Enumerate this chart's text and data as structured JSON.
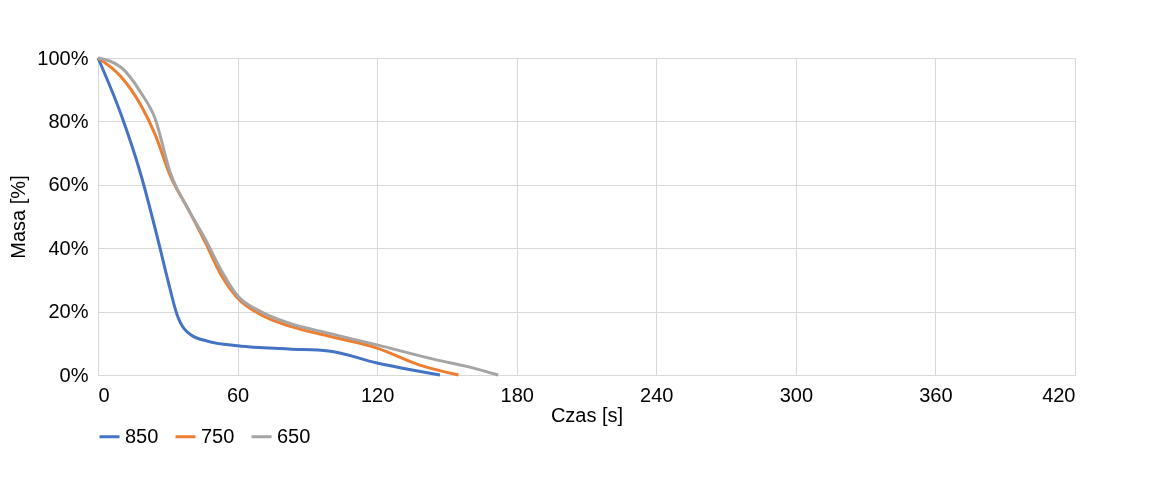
{
  "chart_data": {
    "type": "line",
    "xlabel": "Czas [s]",
    "ylabel": "Masa [%]",
    "xlim": [
      0,
      420
    ],
    "xticks": [
      0,
      60,
      120,
      180,
      240,
      300,
      360,
      420
    ],
    "ylim": [
      0,
      100
    ],
    "yticks": [
      {
        "value": 0,
        "label": "0%"
      },
      {
        "value": 20,
        "label": "20%"
      },
      {
        "value": 40,
        "label": "40%"
      },
      {
        "value": 60,
        "label": "60%"
      },
      {
        "value": 80,
        "label": "80%"
      },
      {
        "value": 100,
        "label": "100%"
      }
    ],
    "grid": true,
    "legend": "bottom",
    "marker": "none",
    "line_style": "solid",
    "series": [
      {
        "name": "850",
        "color": "#4472c4",
        "x": [
          0,
          10,
          18.5,
          26,
          30,
          34,
          40,
          47,
          60,
          82,
          99,
          120,
          135,
          147
        ],
        "values": [
          100,
          82,
          63,
          42,
          30,
          19,
          12.6,
          10.7,
          9.2,
          8.2,
          7.6,
          3.8,
          1.6,
          0
        ]
      },
      {
        "name": "750",
        "color": "#ed7d31",
        "x": [
          0,
          10,
          18.5,
          24.5,
          31,
          39,
          46,
          53,
          60,
          70,
          82,
          99,
          120,
          138,
          155
        ],
        "values": [
          100,
          94,
          85,
          76,
          63,
          52,
          42,
          31.5,
          24.3,
          19,
          15.5,
          12.3,
          8.5,
          3.2,
          0
        ]
      },
      {
        "name": "650",
        "color": "#a5a5a5",
        "x": [
          0,
          10,
          18.5,
          24.5,
          31,
          39,
          46,
          53,
          60,
          70,
          82,
          99,
          120,
          146,
          158,
          172
        ],
        "values": [
          100,
          97,
          89,
          81,
          64,
          52,
          43,
          33,
          25,
          20,
          16.4,
          13.2,
          9.5,
          4.7,
          2.8,
          0
        ]
      }
    ]
  }
}
